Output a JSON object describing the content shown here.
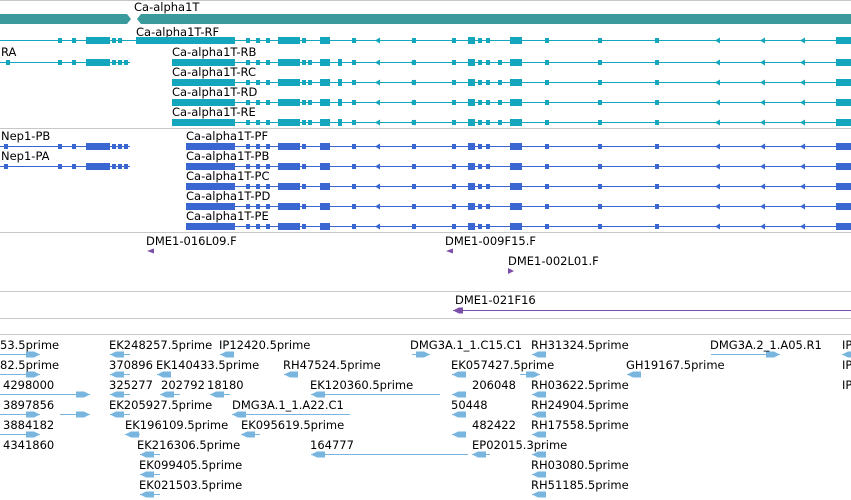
{
  "colors": {
    "gene": "#3b9a9c",
    "transcript_rf": "#13a6bd",
    "protein": "#3a66d2",
    "clone": "#7a4fa8",
    "est": "#79b6df",
    "divider": "#c7c7c7"
  },
  "gene_track": {
    "gene_label": "Ca-alpha1T",
    "transcripts": [
      "Ca-alpha1T-RF",
      "RA",
      "Ca-alpha1T-RB",
      "Ca-alpha1T-RC",
      "Ca-alpha1T-RD",
      "Ca-alpha1T-RE"
    ]
  },
  "protein_track": {
    "labels": [
      "Nep1-PB",
      "Nep1-PA",
      "Ca-alpha1T-PF",
      "Ca-alpha1T-PB",
      "Ca-alpha1T-PC",
      "Ca-alpha1T-PD",
      "Ca-alpha1T-PE"
    ]
  },
  "clone_track": {
    "labels": [
      "DME1-016L09.F",
      "DME1-009F15.F",
      "DME1-002L01.F"
    ]
  },
  "clone_track2": {
    "labels": [
      "DME1-021F16"
    ]
  },
  "est_track": {
    "labels": [
      "53.5prime",
      "EK248257.5prime",
      "IP12420.5prime",
      "DMG3A.1_1.C15.C1",
      "RH31324.5prime",
      "DMG3A.2_1.A05.R1",
      "IP",
      "82.5prime",
      "370896",
      "EK140433.5prime",
      "RH47524.5prime",
      "EK057427.5prime",
      "GH19167.5prime",
      "IP",
      "4298000",
      "325277",
      "202792",
      "18180",
      "EK120360.5prime",
      "206048",
      "RH03622.5prime",
      "IP",
      "3897856",
      "EK205927.5prime",
      "50448",
      "RH24904.5prime",
      "3884182",
      "EK196109.5prime",
      "DMG3A.1_1.A22.C1",
      "EK095619.5prime",
      "482422",
      "RH17558.5prime",
      "4341860",
      "EK216306.5prime",
      "164777",
      "EP02015.3prime",
      "EK099405.5prime",
      "RH03080.5prime",
      "EK021503.5prime",
      "RH51185.5prime"
    ]
  }
}
